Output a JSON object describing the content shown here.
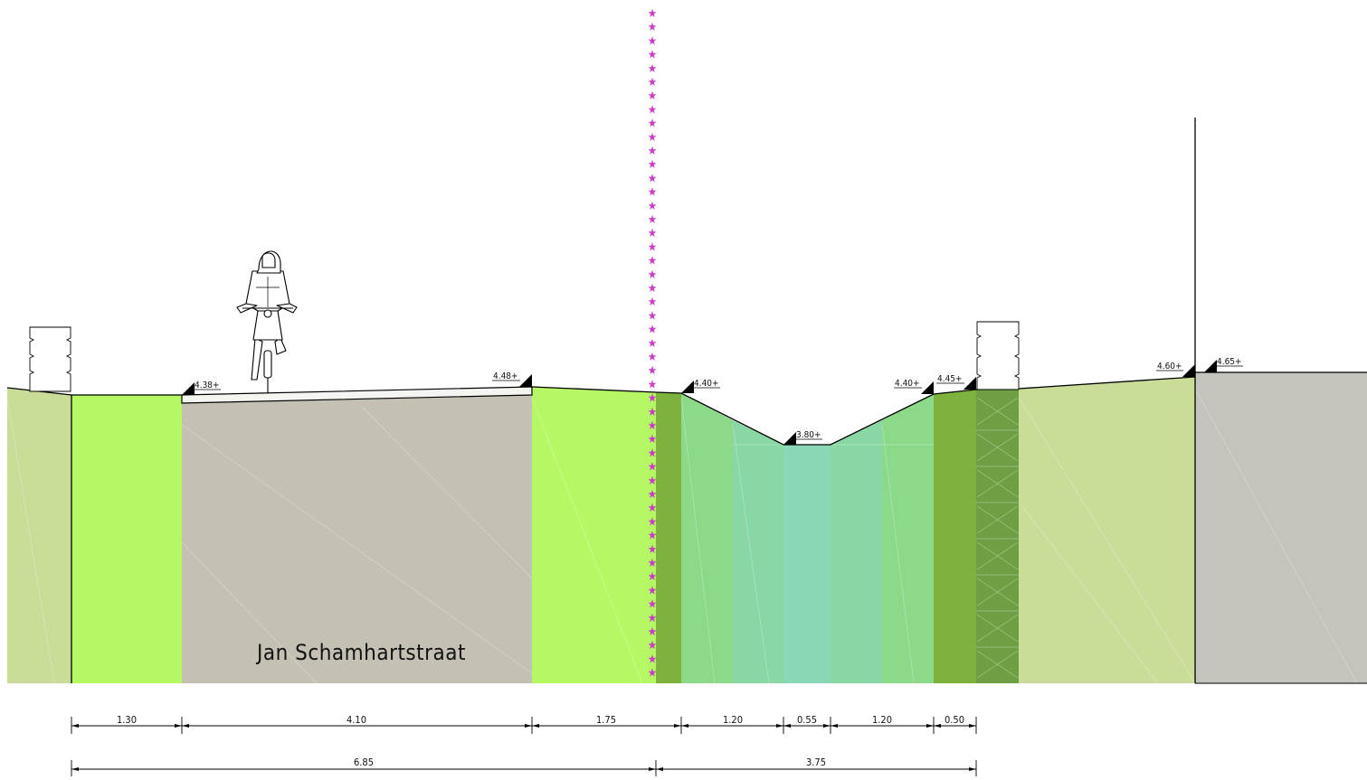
{
  "street_label": "Jan Schamhartstraat",
  "elevations": {
    "e1": "4.38+",
    "e2": "4.48+",
    "e3": "4.40+",
    "e4": "3.80+",
    "e5": "4.40+",
    "e6": "4.45+",
    "e7": "4.60+",
    "e8": "4.65+"
  },
  "dimensions_top": [
    "1.30",
    "4.10",
    "1.75",
    "1.20",
    "0.55",
    "1.20",
    "0.50"
  ],
  "dimensions_bottom": [
    "6.85",
    "3.75"
  ],
  "colors": {
    "verge": "#b6f765",
    "road": "#c4c1b4",
    "dark_green": "#7db33c",
    "slope": "#8cd98a",
    "slope_inner": "#89d7a5",
    "water": "#89d7b5",
    "pale_green": "#c9dd99",
    "grey_block": "#c4c3bc",
    "boundary": "#c83cc8",
    "hedge": "#6f9f45"
  }
}
